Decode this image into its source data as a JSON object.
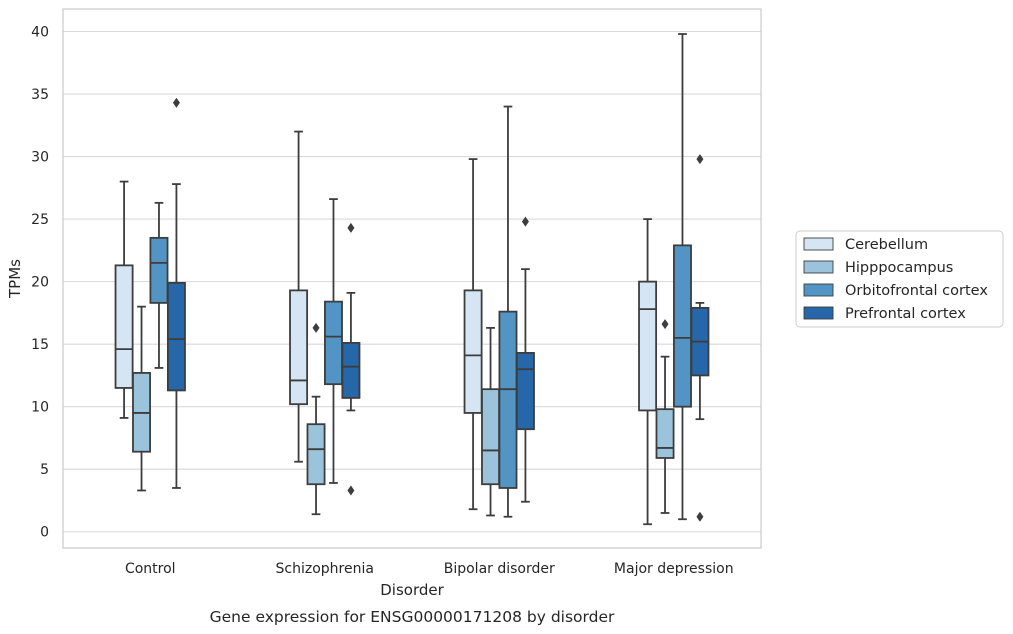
{
  "chart_data": {
    "type": "box",
    "title": "",
    "caption": "Gene expression for ENSG00000171208 by disorder",
    "xlabel": "Disorder",
    "ylabel": "TPMs",
    "ylim": [
      -1.3,
      41.8
    ],
    "yticks": [
      0,
      5,
      10,
      15,
      20,
      25,
      30,
      35,
      40
    ],
    "grid": "horizontal",
    "legend_position": "right",
    "categories": [
      "Control",
      "Schizophrenia",
      "Bipolar disorder",
      "Major depression"
    ],
    "series": [
      {
        "name": "Cerebellum",
        "color": "#d6e5f4",
        "boxes": [
          {
            "whisker_low": 9.1,
            "q1": 11.5,
            "median": 14.6,
            "q3": 21.3,
            "whisker_high": 28.0,
            "outliers": []
          },
          {
            "whisker_low": 5.6,
            "q1": 10.2,
            "median": 12.1,
            "q3": 19.3,
            "whisker_high": 32.0,
            "outliers": []
          },
          {
            "whisker_low": 1.8,
            "q1": 9.5,
            "median": 14.1,
            "q3": 19.3,
            "whisker_high": 29.8,
            "outliers": []
          },
          {
            "whisker_low": 0.6,
            "q1": 9.7,
            "median": 17.8,
            "q3": 20.0,
            "whisker_high": 25.0,
            "outliers": []
          }
        ]
      },
      {
        "name": "Hipppocampus",
        "color": "#9cc3dc",
        "boxes": [
          {
            "whisker_low": 3.3,
            "q1": 6.4,
            "median": 9.5,
            "q3": 12.7,
            "whisker_high": 18.0,
            "outliers": []
          },
          {
            "whisker_low": 1.4,
            "q1": 3.8,
            "median": 6.6,
            "q3": 8.6,
            "whisker_high": 10.8,
            "outliers": [
              16.3
            ]
          },
          {
            "whisker_low": 1.3,
            "q1": 3.8,
            "median": 6.5,
            "q3": 11.4,
            "whisker_high": 16.3,
            "outliers": []
          },
          {
            "whisker_low": 1.5,
            "q1": 5.9,
            "median": 6.7,
            "q3": 9.8,
            "whisker_high": 14.0,
            "outliers": [
              16.6
            ]
          }
        ]
      },
      {
        "name": "Orbitofrontal cortex",
        "color": "#5295c4",
        "boxes": [
          {
            "whisker_low": 13.1,
            "q1": 18.3,
            "median": 21.5,
            "q3": 23.5,
            "whisker_high": 26.3,
            "outliers": []
          },
          {
            "whisker_low": 3.9,
            "q1": 11.8,
            "median": 15.6,
            "q3": 18.4,
            "whisker_high": 26.6,
            "outliers": []
          },
          {
            "whisker_low": 1.2,
            "q1": 3.5,
            "median": 11.4,
            "q3": 17.6,
            "whisker_high": 34.0,
            "outliers": []
          },
          {
            "whisker_low": 1.0,
            "q1": 10.0,
            "median": 15.5,
            "q3": 22.9,
            "whisker_high": 39.8,
            "outliers": []
          }
        ]
      },
      {
        "name": "Prefrontal cortex",
        "color": "#2667a9",
        "boxes": [
          {
            "whisker_low": 3.5,
            "q1": 11.3,
            "median": 15.4,
            "q3": 19.9,
            "whisker_high": 27.8,
            "outliers": [
              34.3
            ]
          },
          {
            "whisker_low": 9.7,
            "q1": 10.7,
            "median": 13.2,
            "q3": 15.1,
            "whisker_high": 19.1,
            "outliers": [
              24.3,
              3.3
            ]
          },
          {
            "whisker_low": 2.4,
            "q1": 8.2,
            "median": 13.0,
            "q3": 14.3,
            "whisker_high": 21.0,
            "outliers": [
              24.8
            ]
          },
          {
            "whisker_low": 9.0,
            "q1": 12.5,
            "median": 15.2,
            "q3": 17.9,
            "whisker_high": 18.3,
            "outliers": [
              29.8,
              1.2
            ]
          }
        ]
      }
    ]
  }
}
